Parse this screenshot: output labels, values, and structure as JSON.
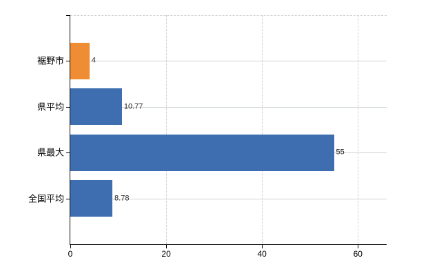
{
  "chart_data": {
    "type": "bar",
    "orientation": "horizontal",
    "title": "",
    "xlabel": "",
    "ylabel": "",
    "legend": "none",
    "categories": [
      "裾野市",
      "県平均",
      "県最大",
      "全国平均"
    ],
    "values": [
      4,
      10.77,
      55,
      8.78
    ],
    "value_labels": [
      "4",
      "10.77",
      "55",
      "8.78"
    ],
    "bar_colors": [
      "#ee8d33",
      "#3e6eb0",
      "#3e6eb0",
      "#3e6eb0"
    ],
    "x_ticks": [
      0,
      20,
      40,
      60
    ],
    "x_tick_labels": [
      "0",
      "20",
      "40",
      "60"
    ],
    "xlim": [
      0,
      66
    ],
    "grid": {
      "horizontal": true,
      "vertical": true
    }
  },
  "colors": {
    "background": "#ffffff",
    "axis": "#000000",
    "grid_solid": "#ccd4cc",
    "grid_dashed": "#d5cfd1",
    "value_label": "#1f1f1f"
  }
}
